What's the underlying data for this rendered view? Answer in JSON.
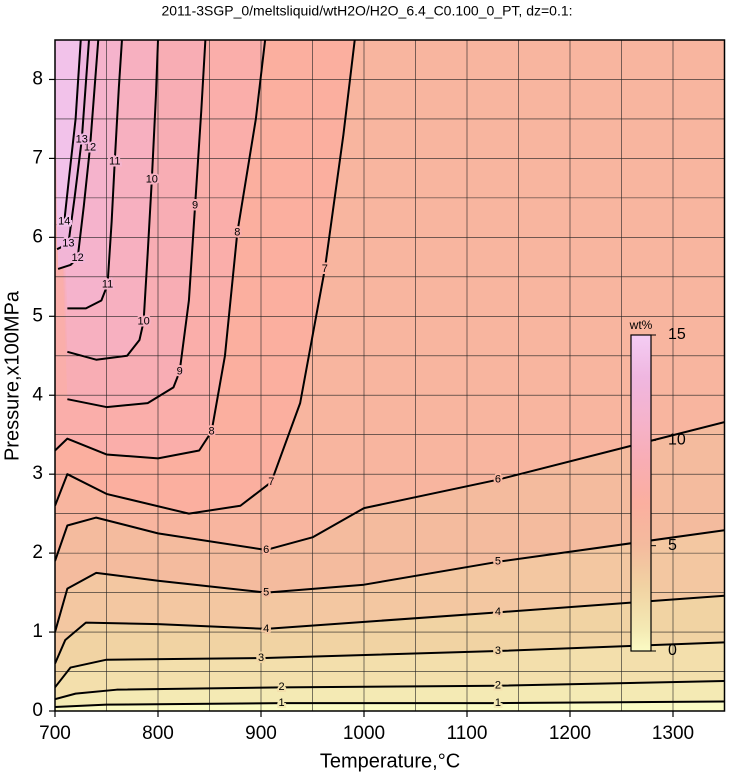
{
  "chart_data": {
    "type": "contour",
    "title": "2011-3SGP_0/meltsliquid/wtH2O/H2O_6.4_C0.100_0_PT, dz=0.1:",
    "xlabel": "Temperature,°C",
    "ylabel": "Pressure,x100MPa",
    "xlim": [
      700,
      1350
    ],
    "ylim": [
      0,
      8.5
    ],
    "xticks": [
      700,
      800,
      900,
      1000,
      1100,
      1200,
      1300
    ],
    "yticks": [
      0,
      1,
      2,
      3,
      4,
      5,
      6,
      7,
      8
    ],
    "xgrid": [
      750,
      800,
      850,
      900,
      950,
      1000,
      1050,
      1100,
      1150,
      1200,
      1250,
      1300
    ],
    "ygrid": [
      0.5,
      1,
      1.5,
      2,
      2.5,
      3,
      3.5,
      4,
      4.5,
      5,
      5.5,
      6,
      6.5,
      7,
      7.5,
      8
    ],
    "grid": true,
    "colormap": [
      {
        "value": 0,
        "color": "#fbfbc4"
      },
      {
        "value": 1,
        "color": "#f4eab4"
      },
      {
        "value": 3,
        "color": "#f1d3a3"
      },
      {
        "value": 5,
        "color": "#f4bb9e"
      },
      {
        "value": 7,
        "color": "#fbaf9f"
      },
      {
        "value": 9,
        "color": "#f8adb4"
      },
      {
        "value": 11,
        "color": "#f5b3cc"
      },
      {
        "value": 13,
        "color": "#efb6e0"
      },
      {
        "value": 15,
        "color": "#f4cdf4"
      }
    ],
    "colorbar": {
      "label": "wt%",
      "lim": [
        0,
        15
      ],
      "ticks": [
        0,
        5,
        10,
        15
      ]
    },
    "contours": [
      {
        "level": 1,
        "x": [
          700,
          750,
          920,
          1130,
          1350
        ],
        "y": [
          0.05,
          0.08,
          0.1,
          0.1,
          0.12
        ]
      },
      {
        "level": 2,
        "x": [
          700,
          720,
          760,
          920,
          1130,
          1350
        ],
        "y": [
          0.15,
          0.22,
          0.27,
          0.3,
          0.32,
          0.38
        ]
      },
      {
        "level": 3,
        "x": [
          700,
          715,
          750,
          900,
          1130,
          1350
        ],
        "y": [
          0.3,
          0.55,
          0.65,
          0.67,
          0.76,
          0.87
        ]
      },
      {
        "level": 4,
        "x": [
          700,
          710,
          730,
          800,
          905,
          1130,
          1350
        ],
        "y": [
          0.6,
          0.9,
          1.12,
          1.1,
          1.04,
          1.25,
          1.46
        ]
      },
      {
        "level": 5,
        "x": [
          700,
          712,
          740,
          800,
          905,
          1000,
          1130,
          1350
        ],
        "y": [
          1.0,
          1.55,
          1.75,
          1.65,
          1.5,
          1.6,
          1.89,
          2.29
        ]
      },
      {
        "level": 6,
        "x": [
          700,
          712,
          740,
          800,
          905,
          950,
          1000,
          1130,
          1350
        ],
        "y": [
          1.9,
          2.35,
          2.45,
          2.25,
          2.04,
          2.2,
          2.57,
          2.93,
          3.66
        ]
      },
      {
        "level": 7,
        "x": [
          700,
          712,
          750,
          830,
          880,
          910,
          938,
          962,
          980,
          991
        ],
        "y": [
          2.6,
          3.0,
          2.75,
          2.5,
          2.6,
          2.9,
          3.9,
          5.6,
          7.3,
          8.5
        ]
      },
      {
        "level": 8,
        "x": [
          700,
          712,
          750,
          800,
          840,
          852,
          865,
          877,
          895,
          904
        ],
        "y": [
          3.3,
          3.45,
          3.25,
          3.2,
          3.3,
          3.54,
          4.5,
          6.06,
          7.5,
          8.5
        ]
      },
      {
        "level": 9,
        "x": [
          712,
          750,
          790,
          815,
          821,
          830,
          836,
          842,
          846
        ],
        "y": [
          3.95,
          3.85,
          3.9,
          4.1,
          4.3,
          5.2,
          6.4,
          7.6,
          8.5
        ]
      },
      {
        "level": 10,
        "x": [
          712,
          740,
          770,
          782,
          786,
          790,
          794,
          798,
          800
        ],
        "y": [
          4.55,
          4.45,
          4.5,
          4.7,
          4.93,
          5.8,
          6.73,
          7.8,
          8.5
        ]
      },
      {
        "level": 11,
        "x": [
          712,
          730,
          745,
          751,
          755,
          758,
          762,
          765
        ],
        "y": [
          5.1,
          5.1,
          5.2,
          5.4,
          6.2,
          6.96,
          7.9,
          8.5
        ]
      },
      {
        "level": 12,
        "x": [
          703,
          715,
          722,
          728,
          734,
          742
        ],
        "y": [
          5.6,
          5.65,
          5.74,
          6.4,
          7.14,
          8.5
        ]
      },
      {
        "level": 13,
        "x": [
          702,
          713,
          719,
          726,
          733
        ],
        "y": [
          5.85,
          5.92,
          6.5,
          7.24,
          8.5
        ]
      },
      {
        "level": 14,
        "x": [
          702,
          709,
          714,
          720,
          725
        ],
        "y": [
          6.15,
          6.2,
          6.8,
          7.5,
          8.5
        ]
      }
    ]
  }
}
